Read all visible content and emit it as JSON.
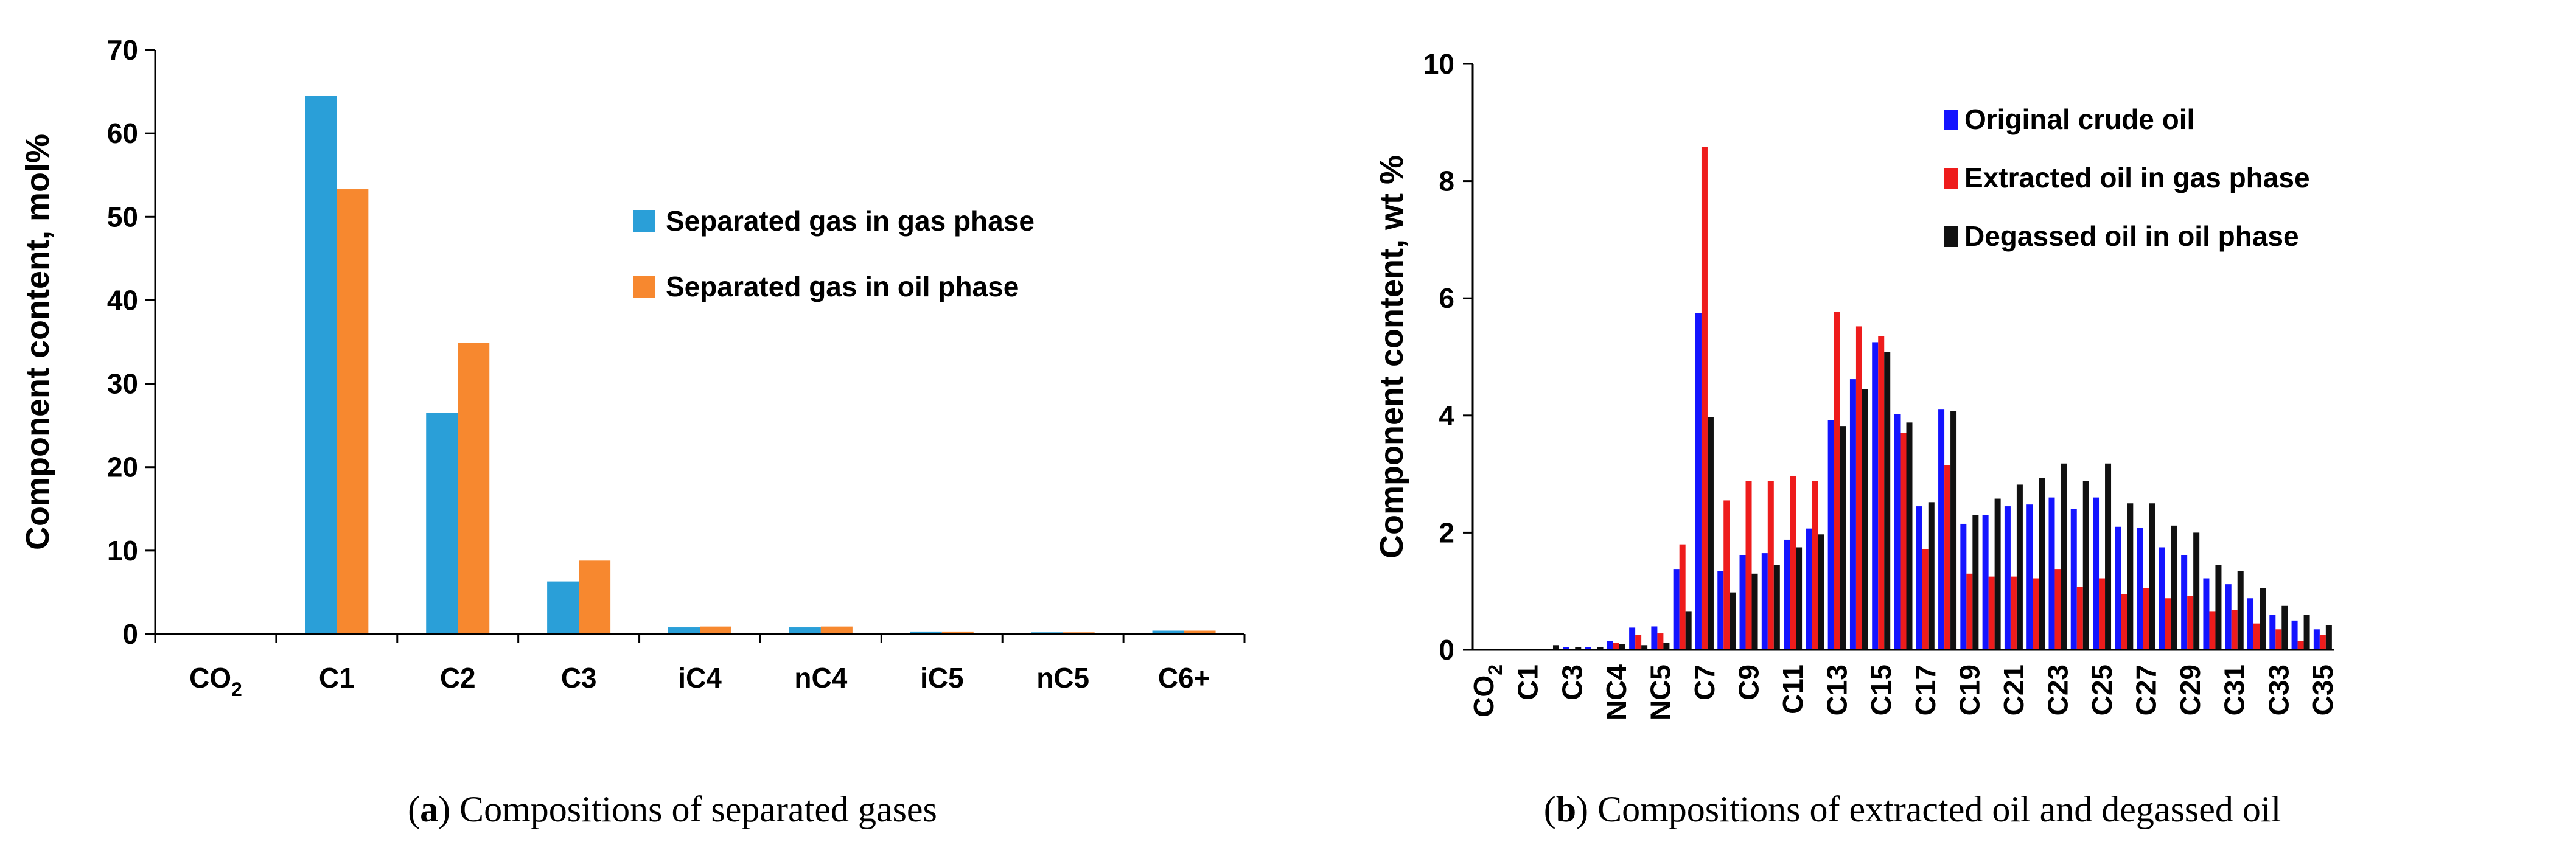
{
  "chart_data": [
    {
      "type": "bar",
      "caption_letter": "a",
      "caption_text": "Compositions of separated gases",
      "ylabel": "Component content, mol%",
      "xlabel": "",
      "ylim": [
        0,
        70
      ],
      "yticks": [
        0,
        10,
        20,
        30,
        40,
        50,
        60,
        70
      ],
      "categories": [
        {
          "base": "CO",
          "sub": "2"
        },
        {
          "base": "C1",
          "sub": ""
        },
        {
          "base": "C2",
          "sub": ""
        },
        {
          "base": "C3",
          "sub": ""
        },
        {
          "base": "iC4",
          "sub": ""
        },
        {
          "base": "nC4",
          "sub": ""
        },
        {
          "base": "iC5",
          "sub": ""
        },
        {
          "base": "nC5",
          "sub": ""
        },
        {
          "base": "C6+",
          "sub": ""
        }
      ],
      "series": [
        {
          "name": "Separated gas in gas phase",
          "color": "#2a9fd8",
          "values": [
            0,
            64.5,
            26.5,
            6.3,
            0.8,
            0.8,
            0.3,
            0.2,
            0.4
          ]
        },
        {
          "name": "Separated gas in oil phase",
          "color": "#f7882f",
          "values": [
            0,
            53.3,
            34.9,
            8.8,
            0.9,
            0.9,
            0.3,
            0.2,
            0.4
          ]
        }
      ],
      "legend_position": "center-right",
      "grid": false
    },
    {
      "type": "bar",
      "caption_letter": "b",
      "caption_text": "Compositions of extracted oil and degassed oil",
      "ylabel": "Component content, wt %",
      "xlabel": "",
      "ylim": [
        0,
        10
      ],
      "yticks": [
        0,
        2,
        4,
        6,
        8,
        10
      ],
      "categories": [
        {
          "base": "CO",
          "sub": "2"
        },
        {
          "base": "",
          "sub": ""
        },
        {
          "base": "C1",
          "sub": ""
        },
        {
          "base": "",
          "sub": ""
        },
        {
          "base": "C3",
          "sub": ""
        },
        {
          "base": "",
          "sub": ""
        },
        {
          "base": "NC4",
          "sub": ""
        },
        {
          "base": "",
          "sub": ""
        },
        {
          "base": "NC5",
          "sub": ""
        },
        {
          "base": "",
          "sub": ""
        },
        {
          "base": "C7",
          "sub": ""
        },
        {
          "base": "",
          "sub": ""
        },
        {
          "base": "C9",
          "sub": ""
        },
        {
          "base": "",
          "sub": ""
        },
        {
          "base": "C11",
          "sub": ""
        },
        {
          "base": "",
          "sub": ""
        },
        {
          "base": "C13",
          "sub": ""
        },
        {
          "base": "",
          "sub": ""
        },
        {
          "base": "C15",
          "sub": ""
        },
        {
          "base": "",
          "sub": ""
        },
        {
          "base": "C17",
          "sub": ""
        },
        {
          "base": "",
          "sub": ""
        },
        {
          "base": "C19",
          "sub": ""
        },
        {
          "base": "",
          "sub": ""
        },
        {
          "base": "C21",
          "sub": ""
        },
        {
          "base": "",
          "sub": ""
        },
        {
          "base": "C23",
          "sub": ""
        },
        {
          "base": "",
          "sub": ""
        },
        {
          "base": "C25",
          "sub": ""
        },
        {
          "base": "",
          "sub": ""
        },
        {
          "base": "C27",
          "sub": ""
        },
        {
          "base": "",
          "sub": ""
        },
        {
          "base": "C29",
          "sub": ""
        },
        {
          "base": "",
          "sub": ""
        },
        {
          "base": "C31",
          "sub": ""
        },
        {
          "base": "",
          "sub": ""
        },
        {
          "base": "C33",
          "sub": ""
        },
        {
          "base": "",
          "sub": ""
        },
        {
          "base": "C35",
          "sub": ""
        }
      ],
      "series": [
        {
          "name": "Original crude oil",
          "color": "#1414ff",
          "values": [
            0,
            0,
            0,
            0,
            0.05,
            0.05,
            0.15,
            0.38,
            0.4,
            1.38,
            5.75,
            1.35,
            1.62,
            1.65,
            1.88,
            2.07,
            3.92,
            4.62,
            5.25,
            4.02,
            2.45,
            4.1,
            2.15,
            2.3,
            2.45,
            2.48,
            2.6,
            2.4,
            2.6,
            2.1,
            2.08,
            1.75,
            1.62,
            1.22,
            1.12,
            0.88,
            0.6,
            0.5,
            0.35
          ]
        },
        {
          "name": "Extracted oil in gas phase",
          "color": "#ee1c1c",
          "values": [
            0,
            0,
            0,
            0,
            0,
            0,
            0.12,
            0.25,
            0.28,
            1.8,
            8.58,
            2.55,
            2.88,
            2.88,
            2.97,
            2.88,
            5.77,
            5.52,
            5.35,
            3.7,
            1.72,
            3.15,
            1.3,
            1.25,
            1.25,
            1.22,
            1.38,
            1.08,
            1.22,
            0.95,
            1.05,
            0.88,
            0.92,
            0.65,
            0.68,
            0.45,
            0.35,
            0.15,
            0.25
          ]
        },
        {
          "name": "Degassed oil in oil phase",
          "color": "#111111",
          "values": [
            0,
            0,
            0,
            0.08,
            0.05,
            0.05,
            0.1,
            0.08,
            0.12,
            0.65,
            3.97,
            0.98,
            1.3,
            1.45,
            1.75,
            1.97,
            3.82,
            4.45,
            5.08,
            3.88,
            2.52,
            4.08,
            2.3,
            2.58,
            2.82,
            2.93,
            3.18,
            2.88,
            3.18,
            2.5,
            2.5,
            2.12,
            2.0,
            1.45,
            1.35,
            1.05,
            0.75,
            0.6,
            0.42
          ]
        }
      ],
      "legend_position": "top-center",
      "grid": false
    }
  ]
}
